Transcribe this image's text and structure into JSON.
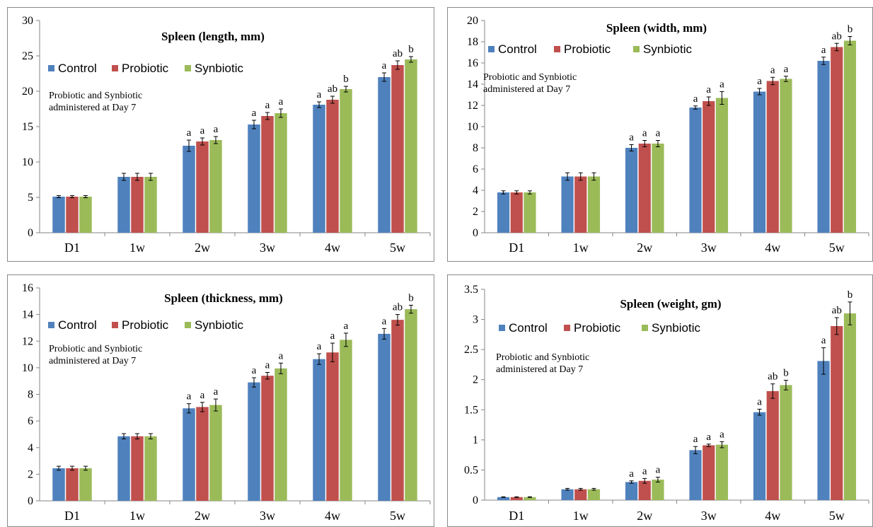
{
  "colors": {
    "Control": "#4F81BD",
    "Probiotic": "#C0504D",
    "Synbiotic": "#9BBB59"
  },
  "chart_data": [
    {
      "type": "bar",
      "title": "Spleen (length, mm)",
      "note": [
        "Probiotic and Synbiotic",
        "administered at Day 7"
      ],
      "categories": [
        "D1",
        "1w",
        "2w",
        "3w",
        "4w",
        "5w"
      ],
      "ylim": [
        0,
        30
      ],
      "yticks": [
        "0",
        "5",
        "10",
        "15",
        "20",
        "25",
        "30"
      ],
      "legend_position": "upper-left",
      "grid": false,
      "series": [
        {
          "name": "Control",
          "values": [
            5.1,
            7.9,
            12.3,
            15.3,
            18.1,
            22.0
          ],
          "errors": [
            0.15,
            0.5,
            0.8,
            0.6,
            0.4,
            0.6
          ],
          "labels": [
            "",
            "",
            "a",
            "a",
            "a",
            "a"
          ]
        },
        {
          "name": "Probiotic",
          "values": [
            5.1,
            7.9,
            12.9,
            16.5,
            18.8,
            23.7
          ],
          "errors": [
            0.15,
            0.5,
            0.5,
            0.5,
            0.5,
            0.6
          ],
          "labels": [
            "",
            "",
            "a",
            "a",
            "ab",
            "ab"
          ]
        },
        {
          "name": "Synbiotic",
          "values": [
            5.1,
            7.9,
            13.1,
            16.9,
            20.3,
            24.5
          ],
          "errors": [
            0.15,
            0.5,
            0.5,
            0.6,
            0.4,
            0.4
          ],
          "labels": [
            "",
            "",
            "a",
            "a",
            "b",
            "b"
          ]
        }
      ]
    },
    {
      "type": "bar",
      "title": "Spleen (width, mm)",
      "note": [
        "Probiotic and Synbiotic",
        "administered at Day 7"
      ],
      "categories": [
        "D1",
        "1w",
        "2w",
        "3w",
        "4w",
        "5w"
      ],
      "ylim": [
        0,
        20
      ],
      "yticks": [
        "0",
        "2",
        "4",
        "6",
        "8",
        "10",
        "12",
        "14",
        "16",
        "18",
        "20"
      ],
      "legend_position": "upper-left",
      "grid": false,
      "series": [
        {
          "name": "Control",
          "values": [
            3.8,
            5.3,
            8.0,
            11.8,
            13.3,
            16.2
          ],
          "errors": [
            0.15,
            0.35,
            0.3,
            0.15,
            0.3,
            0.35
          ],
          "labels": [
            "",
            "",
            "a",
            "a",
            "a",
            "a"
          ]
        },
        {
          "name": "Probiotic",
          "values": [
            3.8,
            5.3,
            8.4,
            12.4,
            14.3,
            17.5
          ],
          "errors": [
            0.15,
            0.35,
            0.3,
            0.4,
            0.35,
            0.35
          ],
          "labels": [
            "",
            "",
            "a",
            "a",
            "a",
            "ab"
          ]
        },
        {
          "name": "Synbiotic",
          "values": [
            3.8,
            5.3,
            8.4,
            12.7,
            14.5,
            18.1
          ],
          "errors": [
            0.15,
            0.35,
            0.3,
            0.6,
            0.25,
            0.4
          ],
          "labels": [
            "",
            "",
            "a",
            "a",
            "a",
            "b"
          ]
        }
      ]
    },
    {
      "type": "bar",
      "title": "Spleen (thickness, mm)",
      "note": [
        "Probiotic and Synbiotic",
        "administered at Day 7"
      ],
      "categories": [
        "D1",
        "1w",
        "2w",
        "3w",
        "4w",
        "5w"
      ],
      "ylim": [
        0,
        16
      ],
      "yticks": [
        "0",
        "2",
        "4",
        "6",
        "8",
        "10",
        "12",
        "14",
        "16"
      ],
      "legend_position": "upper-left",
      "grid": false,
      "series": [
        {
          "name": "Control",
          "values": [
            2.45,
            4.85,
            6.95,
            8.9,
            10.65,
            12.55
          ],
          "errors": [
            0.15,
            0.2,
            0.35,
            0.35,
            0.4,
            0.4
          ],
          "labels": [
            "",
            "",
            "a",
            "a",
            "a",
            "a"
          ]
        },
        {
          "name": "Probiotic",
          "values": [
            2.45,
            4.85,
            7.05,
            9.4,
            11.15,
            13.6
          ],
          "errors": [
            0.15,
            0.2,
            0.35,
            0.25,
            0.7,
            0.4
          ],
          "labels": [
            "",
            "",
            "a",
            "a",
            "a",
            "ab"
          ]
        },
        {
          "name": "Synbiotic",
          "values": [
            2.45,
            4.85,
            7.2,
            9.95,
            12.1,
            14.4
          ],
          "errors": [
            0.15,
            0.2,
            0.45,
            0.4,
            0.5,
            0.3
          ],
          "labels": [
            "",
            "",
            "a",
            "a",
            "a",
            "b"
          ]
        }
      ]
    },
    {
      "type": "bar",
      "title": "Spleen (weight, gm)",
      "note": [
        "Probiotic and Synbiotic",
        "administered at Day 7"
      ],
      "categories": [
        "D1",
        "1w",
        "2w",
        "3w",
        "4w",
        "5w"
      ],
      "ylim": [
        0,
        3.5
      ],
      "yticks": [
        "0",
        "0.5",
        "1",
        "1.5",
        "2",
        "2.5",
        "3",
        "3.5"
      ],
      "legend_position": "upper-left",
      "grid": false,
      "series": [
        {
          "name": "Control",
          "values": [
            0.05,
            0.18,
            0.3,
            0.83,
            1.46,
            2.31
          ],
          "errors": [
            0.005,
            0.015,
            0.02,
            0.06,
            0.05,
            0.22
          ],
          "labels": [
            "",
            "",
            "a",
            "a",
            "a",
            "a"
          ]
        },
        {
          "name": "Probiotic",
          "values": [
            0.05,
            0.18,
            0.32,
            0.91,
            1.81,
            2.89
          ],
          "errors": [
            0.005,
            0.015,
            0.04,
            0.02,
            0.12,
            0.14
          ],
          "labels": [
            "",
            "",
            "a",
            "a",
            "ab",
            "ab"
          ]
        },
        {
          "name": "Synbiotic",
          "values": [
            0.05,
            0.18,
            0.34,
            0.92,
            1.91,
            3.1
          ],
          "errors": [
            0.005,
            0.015,
            0.04,
            0.05,
            0.08,
            0.19
          ],
          "labels": [
            "",
            "",
            "a",
            "a",
            "b",
            "b"
          ]
        }
      ]
    }
  ]
}
